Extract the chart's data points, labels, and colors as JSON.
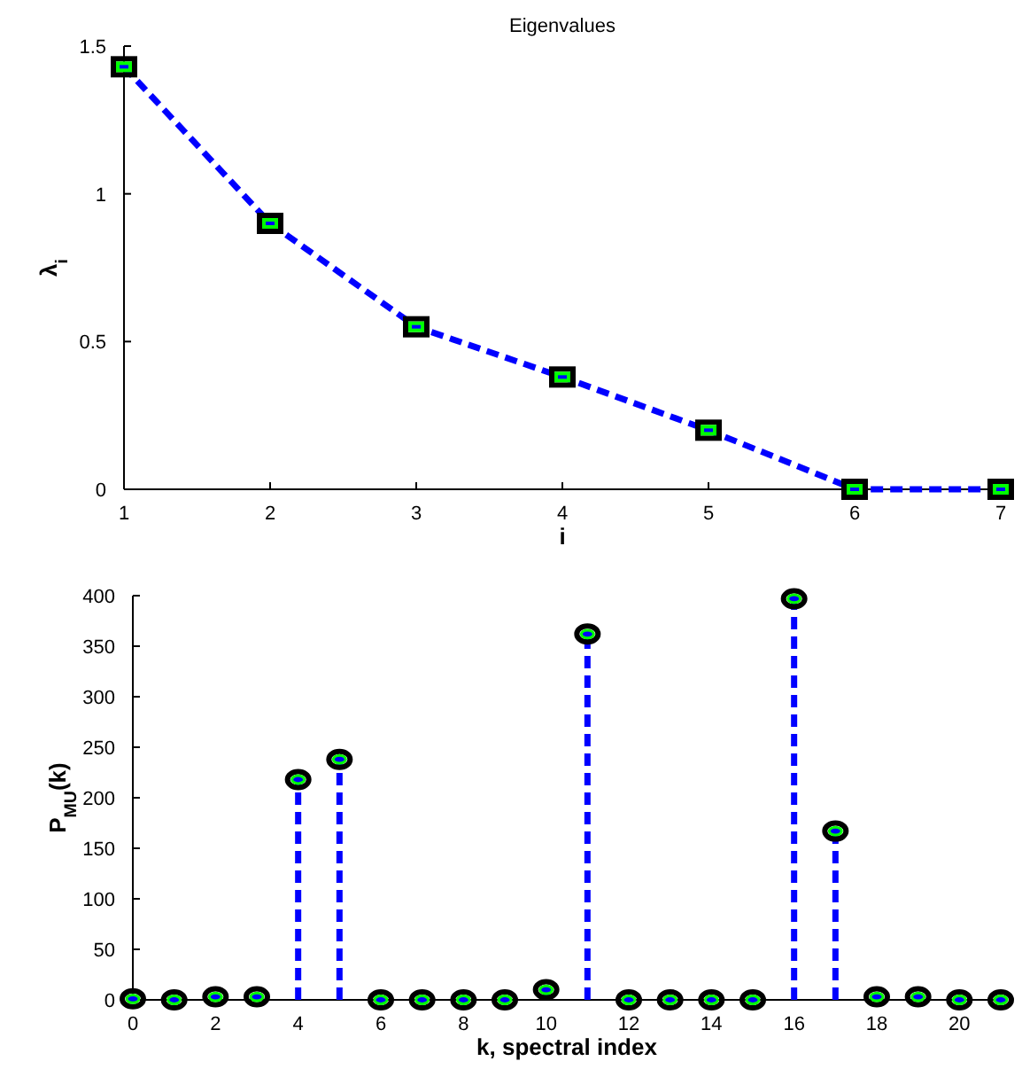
{
  "chart_data": [
    {
      "type": "line",
      "title": "Eigenvalues",
      "xlabel": "i",
      "ylabel": "λ$_{i}$",
      "x": [
        1,
        2,
        3,
        4,
        5,
        6,
        7
      ],
      "series": [
        {
          "color": "#0000ff",
          "values": [
            1.43,
            0.9,
            0.55,
            0.38,
            0.2,
            0,
            0
          ]
        }
      ],
      "xlim": [
        1,
        7
      ],
      "xticks": [
        1,
        2,
        3,
        4,
        5,
        6,
        7
      ],
      "ylim": [
        0,
        1.5
      ],
      "yticks": [
        0,
        0.5,
        1,
        1.5
      ],
      "grid": false,
      "marker": "square",
      "line_style": "dashed"
    },
    {
      "type": "lollipop",
      "xlabel": "k, spectral index",
      "ylabel": "P$_{MU}$(k)",
      "x": [
        0,
        1,
        2,
        3,
        4,
        5,
        6,
        7,
        8,
        9,
        10,
        11,
        12,
        13,
        14,
        15,
        16,
        17,
        18,
        19,
        20,
        21
      ],
      "series": [
        {
          "color": "#0000ff",
          "values": [
            1,
            0,
            3,
            3,
            218,
            238,
            0,
            0,
            0,
            0,
            10,
            362,
            0,
            0,
            0,
            0,
            397,
            167,
            3,
            3,
            0,
            0
          ]
        }
      ],
      "xlim": [
        0,
        21
      ],
      "xticks": [
        0,
        2,
        4,
        6,
        8,
        10,
        12,
        14,
        16,
        18,
        20
      ],
      "ylim": [
        0,
        400
      ],
      "yticks": [
        0,
        50,
        100,
        150,
        200,
        250,
        300,
        350,
        400
      ],
      "grid": false,
      "marker": "circle",
      "line_style": "dashed"
    }
  ]
}
